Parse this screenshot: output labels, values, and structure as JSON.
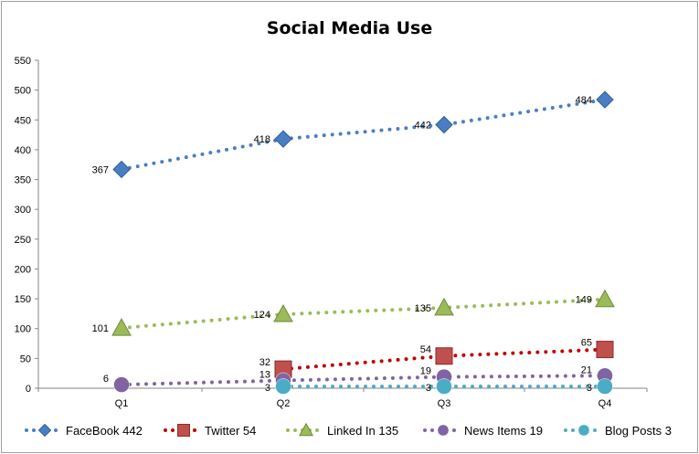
{
  "chart_data": {
    "type": "line",
    "title": "Social Media Use",
    "categories": [
      "Q1",
      "Q2",
      "Q3",
      "Q4"
    ],
    "ylim": [
      0,
      550
    ],
    "yticks": [
      "0",
      "50",
      "100",
      "150",
      "200",
      "250",
      "300",
      "350",
      "400",
      "450",
      "500",
      "550"
    ],
    "grid": false,
    "legend_position": "bottom",
    "series": [
      {
        "name": "FaceBook 442",
        "values": [
          367,
          418,
          442,
          484
        ],
        "color": "#4a7ec3",
        "marker": "diamond",
        "labels": [
          "367",
          "418",
          "442",
          "484"
        ]
      },
      {
        "name": "Twitter 54",
        "values": [
          null,
          32,
          54,
          65
        ],
        "color": "#c0504d",
        "line_color": "#c00000",
        "marker": "square",
        "labels": [
          "",
          "32",
          "54",
          "65"
        ]
      },
      {
        "name": "Linked In 135",
        "values": [
          101,
          124,
          135,
          149
        ],
        "color": "#9bbb59",
        "marker": "triangle",
        "labels": [
          "101",
          "124",
          "135",
          "149"
        ]
      },
      {
        "name": "News Items 19",
        "values": [
          6,
          13,
          19,
          21
        ],
        "color": "#8064a2",
        "marker": "circle",
        "labels": [
          "6",
          "13",
          "19",
          "21"
        ]
      },
      {
        "name": "Blog Posts 3",
        "values": [
          null,
          3,
          3,
          3
        ],
        "color": "#4bacc6",
        "marker": "circle",
        "labels": [
          "",
          "3",
          "3",
          "3"
        ]
      }
    ]
  }
}
